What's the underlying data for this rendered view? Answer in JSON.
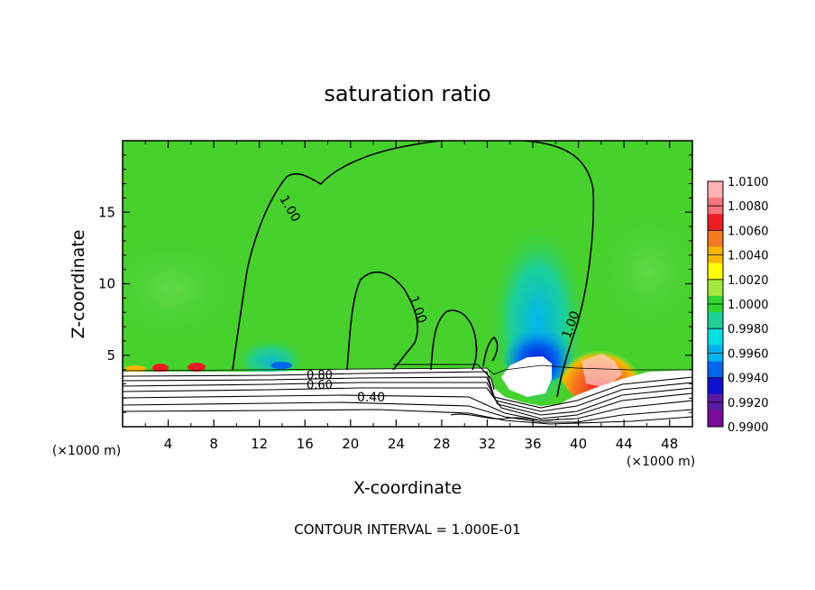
{
  "chart_data": {
    "type": "heatmap",
    "title": "saturation ratio",
    "xlabel": "X-coordinate",
    "ylabel": "Z-coordinate",
    "x_unit_left": "(×1000 m)",
    "x_unit_right": "(×1000 m)",
    "footer": "CONTOUR INTERVAL = 1.000E-01",
    "xlim": [
      0,
      50
    ],
    "ylim": [
      0,
      20
    ],
    "xticks": [
      4,
      8,
      12,
      16,
      20,
      24,
      28,
      32,
      36,
      40,
      44,
      48
    ],
    "yticks": [
      5,
      10,
      15
    ],
    "colorbar": {
      "levels": [
        "1.0100",
        "1.0080",
        "1.0060",
        "1.0040",
        "1.0020",
        "1.0000",
        "0.9980",
        "0.9960",
        "0.9940",
        "0.9920",
        "0.9900"
      ],
      "colors": [
        "#ffb0b0",
        "#f5757a",
        "#ee1c24",
        "#f47920",
        "#f5b800",
        "#ffff00",
        "#a3e83c",
        "#2ed62e",
        "#1cd098",
        "#00e0e0",
        "#00b4f0",
        "#0066ee",
        "#1010d0",
        "#5a1aa0",
        "#7a0a9a"
      ]
    },
    "contour_labels": [
      {
        "text": "1.00",
        "x": 14.8,
        "z": 16.0
      },
      {
        "text": "1.00",
        "x": 25.5,
        "z": 8.3
      },
      {
        "text": "1.00",
        "x": 39.5,
        "z": 7.5
      },
      {
        "text": "0.80",
        "x": 17.5,
        "z": 3.6
      },
      {
        "text": "0.60",
        "x": 17.5,
        "z": 2.9
      },
      {
        "text": "0.40",
        "x": 22.5,
        "z": 2.2
      }
    ],
    "colors": {
      "background_field": "#46d12d",
      "contour": "#000000"
    }
  }
}
